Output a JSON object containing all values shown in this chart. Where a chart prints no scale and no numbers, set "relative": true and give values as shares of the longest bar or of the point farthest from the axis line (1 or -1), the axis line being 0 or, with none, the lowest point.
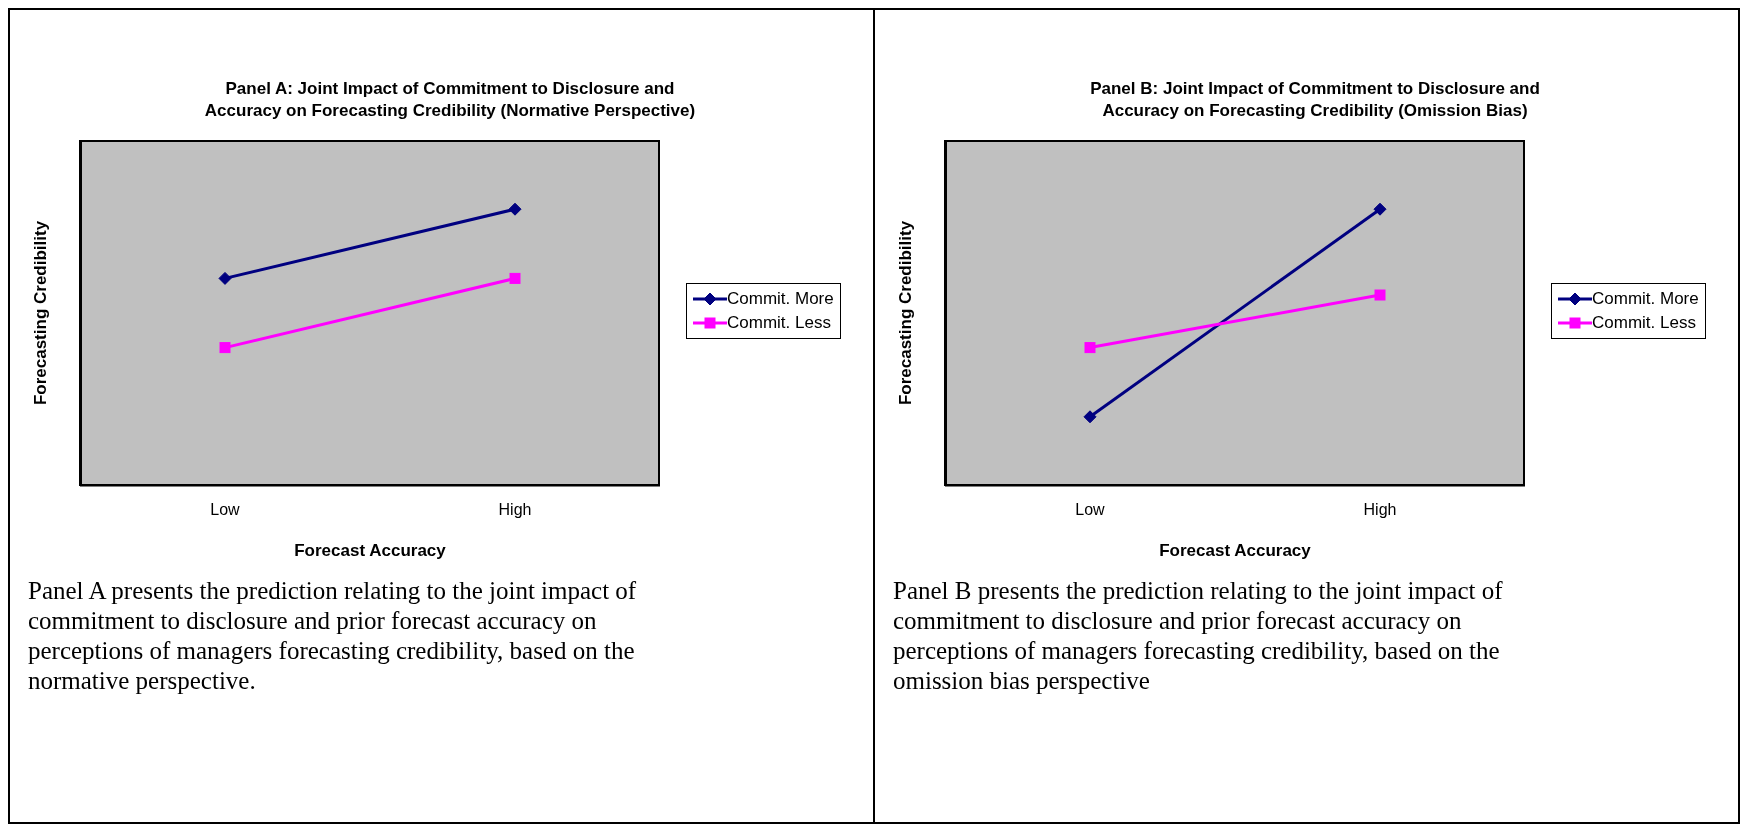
{
  "chart_data": [
    {
      "type": "line",
      "title": "Panel A: Joint Impact of Commitment to Disclosure and Accuracy on Forecasting Credibility (Normative Perspective)",
      "xlabel": "Forecast Accuracy",
      "ylabel": "Forecasting Credibility",
      "categories": [
        "Low",
        "High"
      ],
      "relative": true,
      "legend": "right",
      "line_style": "solid",
      "series": [
        {
          "name": "Commit. More",
          "color": "#000080",
          "marker": "diamond",
          "values": [
            0.75,
            1
          ]
        },
        {
          "name": "Commit. Less",
          "color": "#ff00ff",
          "marker": "square",
          "values": [
            0.5,
            0.75
          ]
        }
      ],
      "annotations": [
        "Panel A presents the prediction relating to the joint impact of commitment to disclosure and prior forecast accuracy on perceptions of managers forecasting credibility, based on the normative perspective."
      ]
    },
    {
      "type": "line",
      "title": "Panel B: Joint Impact of Commitment to Disclosure and Accuracy on Forecasting Credibility (Omission Bias)",
      "xlabel": "Forecast Accuracy",
      "ylabel": "Forecasting Credibility",
      "categories": [
        "Low",
        "High"
      ],
      "relative": true,
      "legend": "right",
      "line_style": "solid",
      "series": [
        {
          "name": "Commit. More",
          "color": "#000080",
          "marker": "diamond",
          "values": [
            0.25,
            1
          ]
        },
        {
          "name": "Commit. Less",
          "color": "#ff00ff",
          "marker": "square",
          "values": [
            0.5,
            0.69
          ]
        }
      ],
      "annotations": [
        "Panel B presents the prediction relating to the joint impact of commitment to disclosure and prior forecast accuracy on perceptions of managers forecasting credibility, based on the omission bias perspective"
      ]
    }
  ]
}
